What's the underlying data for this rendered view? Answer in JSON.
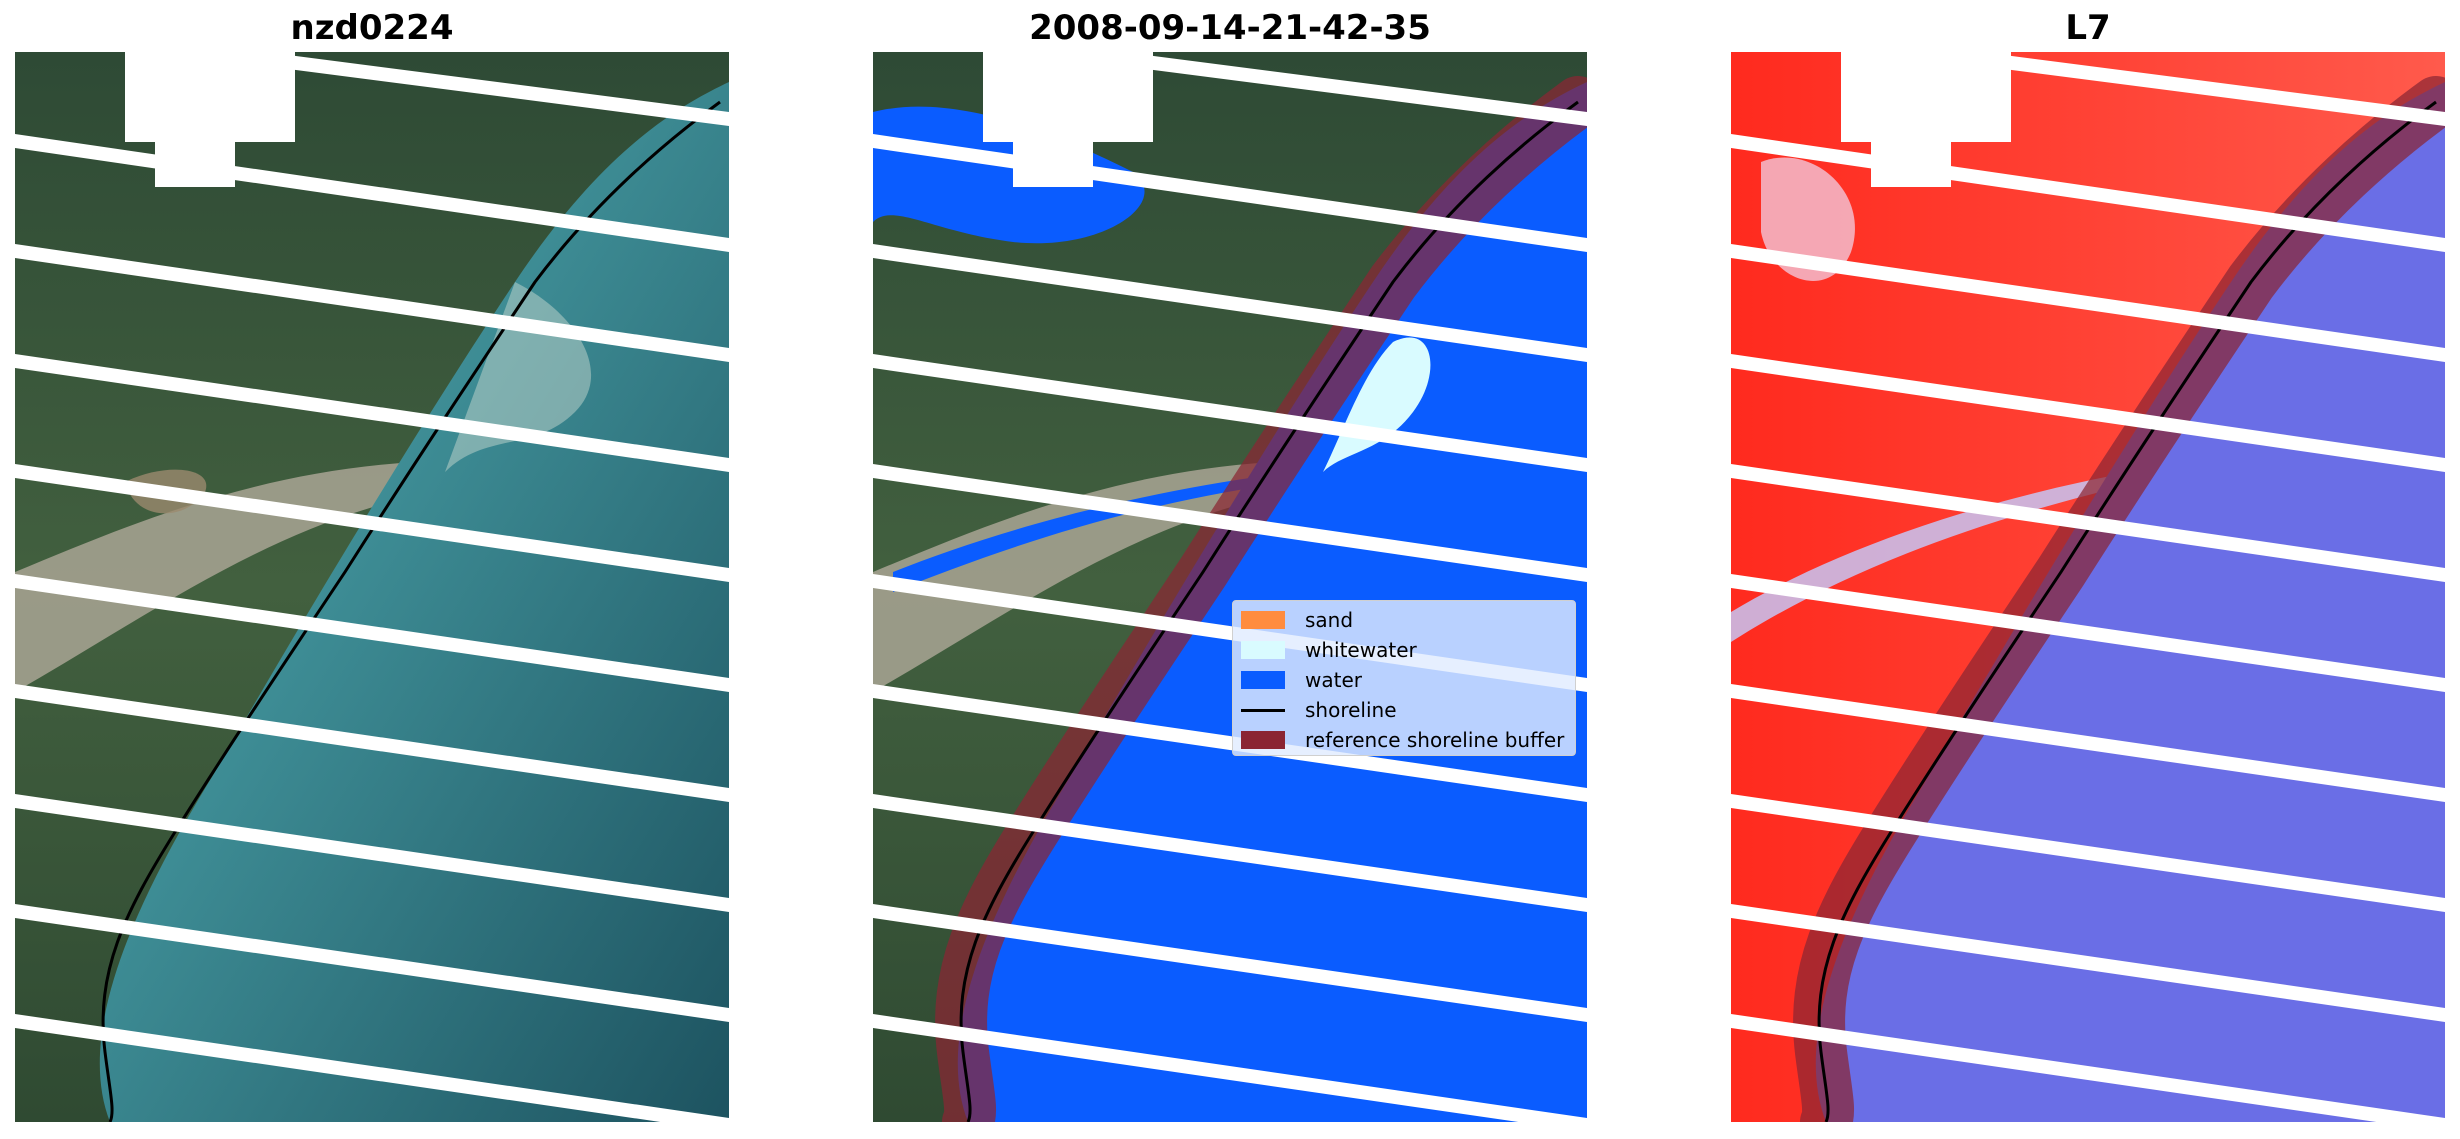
{
  "panels": [
    {
      "title": "nzd0224"
    },
    {
      "title": "2008-09-14-21-42-35"
    },
    {
      "title": "L7"
    }
  ],
  "legend": {
    "items": [
      {
        "label": "sand",
        "color": "#ff8c3f",
        "kind": "patch"
      },
      {
        "label": "whitewater",
        "color": "#d9fbff",
        "kind": "patch"
      },
      {
        "label": "water",
        "color": "#0a5cff",
        "kind": "patch"
      },
      {
        "label": "shoreline",
        "color": "#000000",
        "kind": "line"
      },
      {
        "label": "reference shoreline buffer",
        "color": "#8b2533",
        "kind": "patch"
      }
    ]
  },
  "colors": {
    "water_class": "#0a5cff",
    "whitewater_class": "#d9fbff",
    "buffer": "#8b2533",
    "shoreline": "#000000",
    "gap_stripes": "#ffffff"
  }
}
